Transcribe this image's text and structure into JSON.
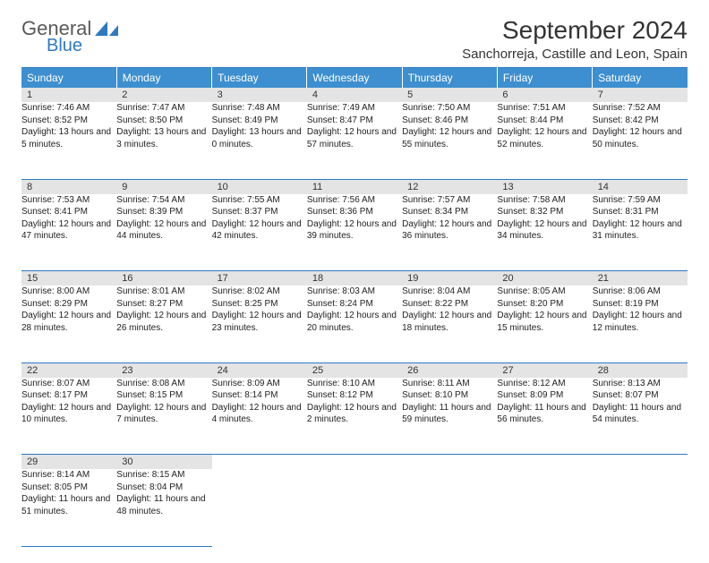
{
  "brand": {
    "word1": "General",
    "word2": "Blue",
    "logo_color": "#2f79c2"
  },
  "title": "September 2024",
  "location": "Sanchorreja, Castille and Leon, Spain",
  "header_bg": "#3d8fcf",
  "rule_color": "#2f79c2",
  "daynum_bg": "#e4e4e4",
  "weekdays": [
    "Sunday",
    "Monday",
    "Tuesday",
    "Wednesday",
    "Thursday",
    "Friday",
    "Saturday"
  ],
  "weeks": [
    [
      {
        "n": "1",
        "sunrise": "Sunrise: 7:46 AM",
        "sunset": "Sunset: 8:52 PM",
        "daylight": "Daylight: 13 hours and 5 minutes."
      },
      {
        "n": "2",
        "sunrise": "Sunrise: 7:47 AM",
        "sunset": "Sunset: 8:50 PM",
        "daylight": "Daylight: 13 hours and 3 minutes."
      },
      {
        "n": "3",
        "sunrise": "Sunrise: 7:48 AM",
        "sunset": "Sunset: 8:49 PM",
        "daylight": "Daylight: 13 hours and 0 minutes."
      },
      {
        "n": "4",
        "sunrise": "Sunrise: 7:49 AM",
        "sunset": "Sunset: 8:47 PM",
        "daylight": "Daylight: 12 hours and 57 minutes."
      },
      {
        "n": "5",
        "sunrise": "Sunrise: 7:50 AM",
        "sunset": "Sunset: 8:46 PM",
        "daylight": "Daylight: 12 hours and 55 minutes."
      },
      {
        "n": "6",
        "sunrise": "Sunrise: 7:51 AM",
        "sunset": "Sunset: 8:44 PM",
        "daylight": "Daylight: 12 hours and 52 minutes."
      },
      {
        "n": "7",
        "sunrise": "Sunrise: 7:52 AM",
        "sunset": "Sunset: 8:42 PM",
        "daylight": "Daylight: 12 hours and 50 minutes."
      }
    ],
    [
      {
        "n": "8",
        "sunrise": "Sunrise: 7:53 AM",
        "sunset": "Sunset: 8:41 PM",
        "daylight": "Daylight: 12 hours and 47 minutes."
      },
      {
        "n": "9",
        "sunrise": "Sunrise: 7:54 AM",
        "sunset": "Sunset: 8:39 PM",
        "daylight": "Daylight: 12 hours and 44 minutes."
      },
      {
        "n": "10",
        "sunrise": "Sunrise: 7:55 AM",
        "sunset": "Sunset: 8:37 PM",
        "daylight": "Daylight: 12 hours and 42 minutes."
      },
      {
        "n": "11",
        "sunrise": "Sunrise: 7:56 AM",
        "sunset": "Sunset: 8:36 PM",
        "daylight": "Daylight: 12 hours and 39 minutes."
      },
      {
        "n": "12",
        "sunrise": "Sunrise: 7:57 AM",
        "sunset": "Sunset: 8:34 PM",
        "daylight": "Daylight: 12 hours and 36 minutes."
      },
      {
        "n": "13",
        "sunrise": "Sunrise: 7:58 AM",
        "sunset": "Sunset: 8:32 PM",
        "daylight": "Daylight: 12 hours and 34 minutes."
      },
      {
        "n": "14",
        "sunrise": "Sunrise: 7:59 AM",
        "sunset": "Sunset: 8:31 PM",
        "daylight": "Daylight: 12 hours and 31 minutes."
      }
    ],
    [
      {
        "n": "15",
        "sunrise": "Sunrise: 8:00 AM",
        "sunset": "Sunset: 8:29 PM",
        "daylight": "Daylight: 12 hours and 28 minutes."
      },
      {
        "n": "16",
        "sunrise": "Sunrise: 8:01 AM",
        "sunset": "Sunset: 8:27 PM",
        "daylight": "Daylight: 12 hours and 26 minutes."
      },
      {
        "n": "17",
        "sunrise": "Sunrise: 8:02 AM",
        "sunset": "Sunset: 8:25 PM",
        "daylight": "Daylight: 12 hours and 23 minutes."
      },
      {
        "n": "18",
        "sunrise": "Sunrise: 8:03 AM",
        "sunset": "Sunset: 8:24 PM",
        "daylight": "Daylight: 12 hours and 20 minutes."
      },
      {
        "n": "19",
        "sunrise": "Sunrise: 8:04 AM",
        "sunset": "Sunset: 8:22 PM",
        "daylight": "Daylight: 12 hours and 18 minutes."
      },
      {
        "n": "20",
        "sunrise": "Sunrise: 8:05 AM",
        "sunset": "Sunset: 8:20 PM",
        "daylight": "Daylight: 12 hours and 15 minutes."
      },
      {
        "n": "21",
        "sunrise": "Sunrise: 8:06 AM",
        "sunset": "Sunset: 8:19 PM",
        "daylight": "Daylight: 12 hours and 12 minutes."
      }
    ],
    [
      {
        "n": "22",
        "sunrise": "Sunrise: 8:07 AM",
        "sunset": "Sunset: 8:17 PM",
        "daylight": "Daylight: 12 hours and 10 minutes."
      },
      {
        "n": "23",
        "sunrise": "Sunrise: 8:08 AM",
        "sunset": "Sunset: 8:15 PM",
        "daylight": "Daylight: 12 hours and 7 minutes."
      },
      {
        "n": "24",
        "sunrise": "Sunrise: 8:09 AM",
        "sunset": "Sunset: 8:14 PM",
        "daylight": "Daylight: 12 hours and 4 minutes."
      },
      {
        "n": "25",
        "sunrise": "Sunrise: 8:10 AM",
        "sunset": "Sunset: 8:12 PM",
        "daylight": "Daylight: 12 hours and 2 minutes."
      },
      {
        "n": "26",
        "sunrise": "Sunrise: 8:11 AM",
        "sunset": "Sunset: 8:10 PM",
        "daylight": "Daylight: 11 hours and 59 minutes."
      },
      {
        "n": "27",
        "sunrise": "Sunrise: 8:12 AM",
        "sunset": "Sunset: 8:09 PM",
        "daylight": "Daylight: 11 hours and 56 minutes."
      },
      {
        "n": "28",
        "sunrise": "Sunrise: 8:13 AM",
        "sunset": "Sunset: 8:07 PM",
        "daylight": "Daylight: 11 hours and 54 minutes."
      }
    ],
    [
      {
        "n": "29",
        "sunrise": "Sunrise: 8:14 AM",
        "sunset": "Sunset: 8:05 PM",
        "daylight": "Daylight: 11 hours and 51 minutes."
      },
      {
        "n": "30",
        "sunrise": "Sunrise: 8:15 AM",
        "sunset": "Sunset: 8:04 PM",
        "daylight": "Daylight: 11 hours and 48 minutes."
      },
      null,
      null,
      null,
      null,
      null
    ]
  ]
}
